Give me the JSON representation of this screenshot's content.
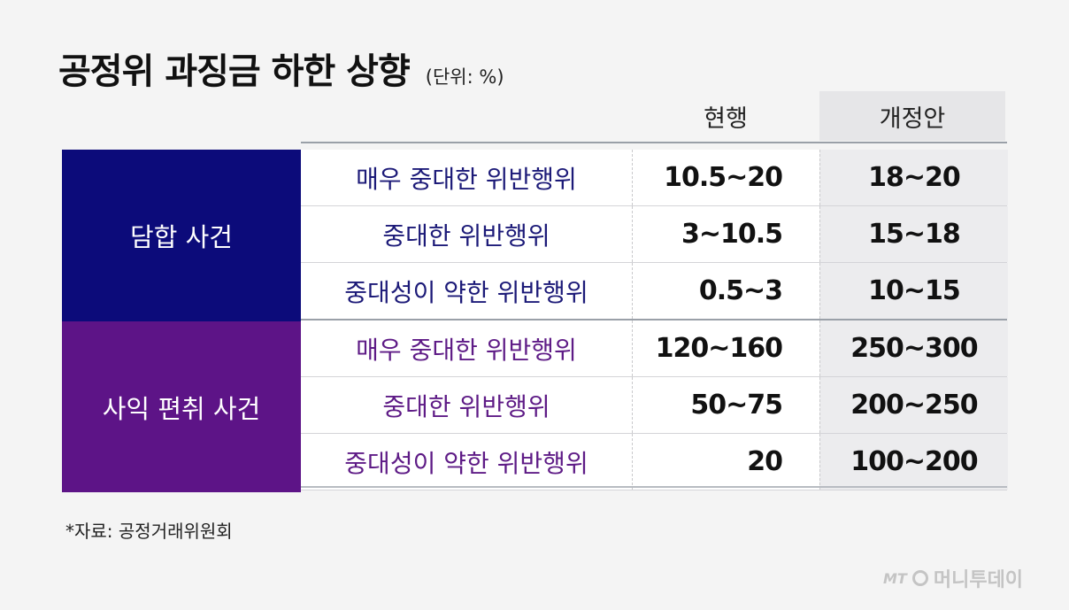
{
  "chart_data": {
    "type": "table",
    "title": "공정위 과징금 하한 상향",
    "unit": "(단위: %)",
    "columns": [
      "현행",
      "개정안"
    ],
    "groups": [
      {
        "name": "담합 사건",
        "rows": [
          {
            "category": "매우 중대한 위반행위",
            "current": "10.5~20",
            "proposed": "18~20"
          },
          {
            "category": "중대한 위반행위",
            "current": "3~10.5",
            "proposed": "15~18"
          },
          {
            "category": "중대성이 약한 위반행위",
            "current": "0.5~3",
            "proposed": "10~15"
          }
        ]
      },
      {
        "name": "사익 편취 사건",
        "rows": [
          {
            "category": "매우 중대한 위반행위",
            "current": "120~160",
            "proposed": "250~300"
          },
          {
            "category": "중대한 위반행위",
            "current": "50~75",
            "proposed": "200~250"
          },
          {
            "category": "중대성이 약한 위반행위",
            "current": "20",
            "proposed": "100~200"
          }
        ]
      }
    ],
    "source": "*자료: 공정거래위원회",
    "colors": {
      "group1": "#0c0b7a",
      "group2": "#5d1487"
    }
  },
  "branding": {
    "logo_mark": "MT",
    "logo_text": "머니투데이"
  }
}
